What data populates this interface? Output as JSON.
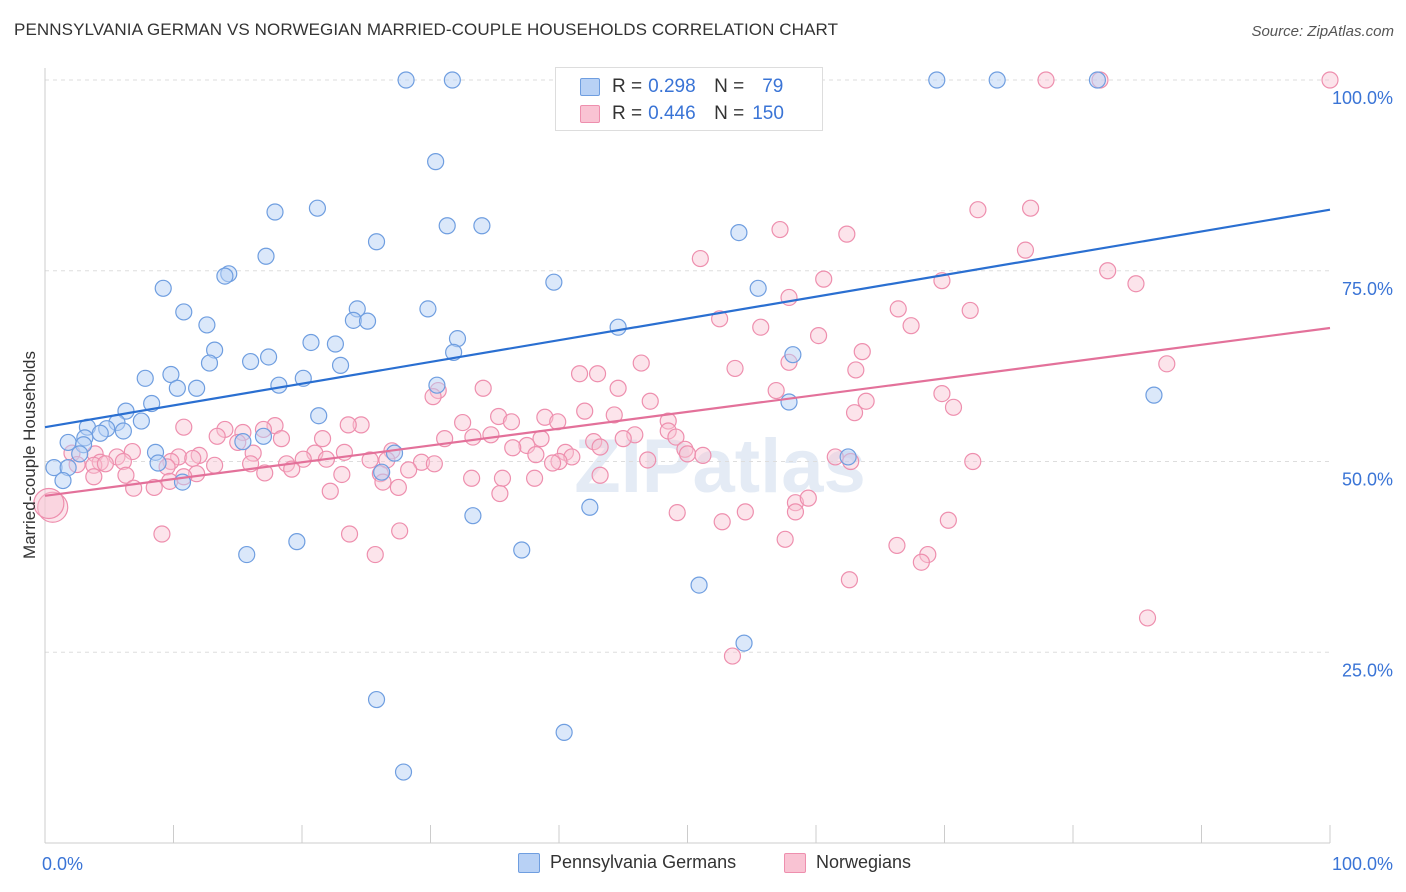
{
  "title": "PENNSYLVANIA GERMAN VS NORWEGIAN MARRIED-COUPLE HOUSEHOLDS CORRELATION CHART",
  "source": "Source: ZipAtlas.com",
  "watermark": "ZIPatlas",
  "legend": {
    "r_label": "R =",
    "n_label": "N =",
    "rows": [
      {
        "r": "0.298",
        "n": "79",
        "fill": "#b8d1f5",
        "stroke": "#6f9ee0"
      },
      {
        "r": "0.446",
        "n": "150",
        "fill": "#f9c3d3",
        "stroke": "#ee8fae"
      }
    ]
  },
  "bottom_legend": [
    "Pennsylvania Germans",
    "Norwegians"
  ],
  "colors": {
    "blue_fill": "#b8d1f5",
    "blue_stroke": "#6f9ee0",
    "blue_line": "#2a6fd1",
    "pink_fill": "#f9c3d3",
    "pink_stroke": "#ee8fae",
    "pink_line": "#e3719a",
    "tick_label": "#3a74d6",
    "grid": "#dddddd"
  },
  "chart_data": {
    "type": "scatter",
    "title": "PENNSYLVANIA GERMAN VS NORWEGIAN MARRIED-COUPLE HOUSEHOLDS CORRELATION CHART",
    "xlabel": "",
    "ylabel": "Married-couple Households",
    "xlim": [
      0,
      100
    ],
    "ylim": [
      0,
      100
    ],
    "x_tick_labels": [
      "0.0%",
      "100.0%"
    ],
    "y_tick_labels": [
      "25.0%",
      "50.0%",
      "75.0%",
      "100.0%"
    ],
    "y_ticks": [
      25,
      50,
      75,
      100
    ],
    "grid": "horizontal dashed",
    "legend_position": "top-center",
    "series": [
      {
        "name": "Pennsylvania Germans",
        "R": 0.298,
        "N": 79,
        "trend": [
          [
            0,
            54.5
          ],
          [
            100,
            83.0
          ]
        ],
        "points": [
          [
            28.1,
            100
          ],
          [
            31.7,
            100
          ],
          [
            69.4,
            100
          ],
          [
            74.1,
            100
          ],
          [
            81.9,
            100
          ],
          [
            30.4,
            89.3
          ],
          [
            21.2,
            83.2
          ],
          [
            17.9,
            82.7
          ],
          [
            31.3,
            80.9
          ],
          [
            34.0,
            80.9
          ],
          [
            54.0,
            80.0
          ],
          [
            25.8,
            78.8
          ],
          [
            17.2,
            76.9
          ],
          [
            14.3,
            74.6
          ],
          [
            14.0,
            74.3
          ],
          [
            39.6,
            73.5
          ],
          [
            55.5,
            72.7
          ],
          [
            9.2,
            72.7
          ],
          [
            10.8,
            69.6
          ],
          [
            24.3,
            70.0
          ],
          [
            29.8,
            70.0
          ],
          [
            24.0,
            68.5
          ],
          [
            25.1,
            68.4
          ],
          [
            12.6,
            67.9
          ],
          [
            44.6,
            67.6
          ],
          [
            32.1,
            66.1
          ],
          [
            20.7,
            65.6
          ],
          [
            22.6,
            65.4
          ],
          [
            13.2,
            64.6
          ],
          [
            31.8,
            64.3
          ],
          [
            58.2,
            64.0
          ],
          [
            17.4,
            63.7
          ],
          [
            16.0,
            63.1
          ],
          [
            12.8,
            62.9
          ],
          [
            23.0,
            62.6
          ],
          [
            9.8,
            61.4
          ],
          [
            7.8,
            60.9
          ],
          [
            20.1,
            60.9
          ],
          [
            18.2,
            60.0
          ],
          [
            30.5,
            60.0
          ],
          [
            10.3,
            59.6
          ],
          [
            11.8,
            59.6
          ],
          [
            8.3,
            57.6
          ],
          [
            86.3,
            58.7
          ],
          [
            57.9,
            57.8
          ],
          [
            6.3,
            56.6
          ],
          [
            21.3,
            56.0
          ],
          [
            7.5,
            55.3
          ],
          [
            5.6,
            55.1
          ],
          [
            3.3,
            54.5
          ],
          [
            4.8,
            54.3
          ],
          [
            6.1,
            54.0
          ],
          [
            4.3,
            53.7
          ],
          [
            17.0,
            53.3
          ],
          [
            3.1,
            53.1
          ],
          [
            1.8,
            52.5
          ],
          [
            3.0,
            52.2
          ],
          [
            15.4,
            52.6
          ],
          [
            8.6,
            51.2
          ],
          [
            27.2,
            51.1
          ],
          [
            2.7,
            51.0
          ],
          [
            62.5,
            50.6
          ],
          [
            8.8,
            49.8
          ],
          [
            0.7,
            49.2
          ],
          [
            1.8,
            49.2
          ],
          [
            26.2,
            48.6
          ],
          [
            1.4,
            47.5
          ],
          [
            10.7,
            47.3
          ],
          [
            42.4,
            44.0
          ],
          [
            33.3,
            42.9
          ],
          [
            15.7,
            37.8
          ],
          [
            19.6,
            39.5
          ],
          [
            37.1,
            38.4
          ],
          [
            50.9,
            33.8
          ],
          [
            54.4,
            26.2
          ],
          [
            25.8,
            18.8
          ],
          [
            40.4,
            14.5
          ],
          [
            27.9,
            9.3
          ]
        ]
      },
      {
        "name": "Norwegians",
        "R": 0.446,
        "N": 150,
        "trend": [
          [
            0,
            45.5
          ],
          [
            100,
            67.5
          ]
        ],
        "points": [
          [
            77.9,
            100
          ],
          [
            82.1,
            100
          ],
          [
            100,
            100
          ],
          [
            76.7,
            83.2
          ],
          [
            72.6,
            83.0
          ],
          [
            57.2,
            80.4
          ],
          [
            62.4,
            79.8
          ],
          [
            76.3,
            77.7
          ],
          [
            51.0,
            76.6
          ],
          [
            82.7,
            75.0
          ],
          [
            60.6,
            73.9
          ],
          [
            69.8,
            73.7
          ],
          [
            84.9,
            73.3
          ],
          [
            57.9,
            71.5
          ],
          [
            66.4,
            70.0
          ],
          [
            72.0,
            69.8
          ],
          [
            52.5,
            68.7
          ],
          [
            67.4,
            67.8
          ],
          [
            55.7,
            67.6
          ],
          [
            60.2,
            66.5
          ],
          [
            63.6,
            64.4
          ],
          [
            57.9,
            63.0
          ],
          [
            63.1,
            62.0
          ],
          [
            46.4,
            62.9
          ],
          [
            53.7,
            62.2
          ],
          [
            87.3,
            62.8
          ],
          [
            41.6,
            61.5
          ],
          [
            43.0,
            61.5
          ],
          [
            44.6,
            59.6
          ],
          [
            56.9,
            59.3
          ],
          [
            69.8,
            58.9
          ],
          [
            34.1,
            59.6
          ],
          [
            30.6,
            59.3
          ],
          [
            30.2,
            58.5
          ],
          [
            63.9,
            57.9
          ],
          [
            70.7,
            57.1
          ],
          [
            47.1,
            57.9
          ],
          [
            63.0,
            56.4
          ],
          [
            42.0,
            56.6
          ],
          [
            35.3,
            55.9
          ],
          [
            44.3,
            56.1
          ],
          [
            38.9,
            55.8
          ],
          [
            48.5,
            55.3
          ],
          [
            39.9,
            55.2
          ],
          [
            36.3,
            55.2
          ],
          [
            48.5,
            54.0
          ],
          [
            32.5,
            55.1
          ],
          [
            24.6,
            54.8
          ],
          [
            23.6,
            54.8
          ],
          [
            17.9,
            54.7
          ],
          [
            17.0,
            54.2
          ],
          [
            15.4,
            53.8
          ],
          [
            14.0,
            54.2
          ],
          [
            10.8,
            54.5
          ],
          [
            13.4,
            53.3
          ],
          [
            34.7,
            53.5
          ],
          [
            45.9,
            53.5
          ],
          [
            49.1,
            53.2
          ],
          [
            18.4,
            53.0
          ],
          [
            21.6,
            53.0
          ],
          [
            38.6,
            53.0
          ],
          [
            31.1,
            53.0
          ],
          [
            33.3,
            53.2
          ],
          [
            45.0,
            53.0
          ],
          [
            42.7,
            52.6
          ],
          [
            15.0,
            52.5
          ],
          [
            37.5,
            52.1
          ],
          [
            36.4,
            51.8
          ],
          [
            43.2,
            51.9
          ],
          [
            49.8,
            51.6
          ],
          [
            27.0,
            51.4
          ],
          [
            23.3,
            51.2
          ],
          [
            21.0,
            51.1
          ],
          [
            16.2,
            51.1
          ],
          [
            12.0,
            50.8
          ],
          [
            10.4,
            50.6
          ],
          [
            9.8,
            50.0
          ],
          [
            11.5,
            50.4
          ],
          [
            2.1,
            51.1
          ],
          [
            3.9,
            51.0
          ],
          [
            6.8,
            51.3
          ],
          [
            5.6,
            50.6
          ],
          [
            6.1,
            50.0
          ],
          [
            50.0,
            51.0
          ],
          [
            40.5,
            51.2
          ],
          [
            41.0,
            50.6
          ],
          [
            51.2,
            50.8
          ],
          [
            38.2,
            50.9
          ],
          [
            46.9,
            50.2
          ],
          [
            40.0,
            50.0
          ],
          [
            61.5,
            50.6
          ],
          [
            62.7,
            50.0
          ],
          [
            72.2,
            50.0
          ],
          [
            4.3,
            49.9
          ],
          [
            3.8,
            49.5
          ],
          [
            4.7,
            49.7
          ],
          [
            2.5,
            49.6
          ],
          [
            9.5,
            49.3
          ],
          [
            13.2,
            49.5
          ],
          [
            16.0,
            49.7
          ],
          [
            18.8,
            49.7
          ],
          [
            20.1,
            50.3
          ],
          [
            21.9,
            50.3
          ],
          [
            25.3,
            50.2
          ],
          [
            26.6,
            50.2
          ],
          [
            29.3,
            49.9
          ],
          [
            30.3,
            49.7
          ],
          [
            39.5,
            49.8
          ],
          [
            17.1,
            48.5
          ],
          [
            19.2,
            49.0
          ],
          [
            26.1,
            48.4
          ],
          [
            23.1,
            48.3
          ],
          [
            28.3,
            48.9
          ],
          [
            11.8,
            48.4
          ],
          [
            10.8,
            48.0
          ],
          [
            6.3,
            48.2
          ],
          [
            3.8,
            48.0
          ],
          [
            9.7,
            47.4
          ],
          [
            8.5,
            46.6
          ],
          [
            6.9,
            46.5
          ],
          [
            26.3,
            47.3
          ],
          [
            27.5,
            46.6
          ],
          [
            22.2,
            46.1
          ],
          [
            33.2,
            47.8
          ],
          [
            35.6,
            47.8
          ],
          [
            38.1,
            47.8
          ],
          [
            43.2,
            48.2
          ],
          [
            35.4,
            45.8
          ],
          [
            58.4,
            44.6
          ],
          [
            59.4,
            45.2
          ],
          [
            54.5,
            43.4
          ],
          [
            49.2,
            43.3
          ],
          [
            58.4,
            43.4
          ],
          [
            52.7,
            42.1
          ],
          [
            70.3,
            42.3
          ],
          [
            57.6,
            39.8
          ],
          [
            66.3,
            39.0
          ],
          [
            68.7,
            37.8
          ],
          [
            68.2,
            36.8
          ],
          [
            62.6,
            34.5
          ],
          [
            85.8,
            29.5
          ],
          [
            53.5,
            24.5
          ],
          [
            9.1,
            40.5
          ],
          [
            23.7,
            40.5
          ],
          [
            27.6,
            40.9
          ],
          [
            25.7,
            37.8
          ],
          [
            0.6,
            44.0
          ],
          [
            0.3,
            44.5
          ]
        ]
      }
    ]
  }
}
